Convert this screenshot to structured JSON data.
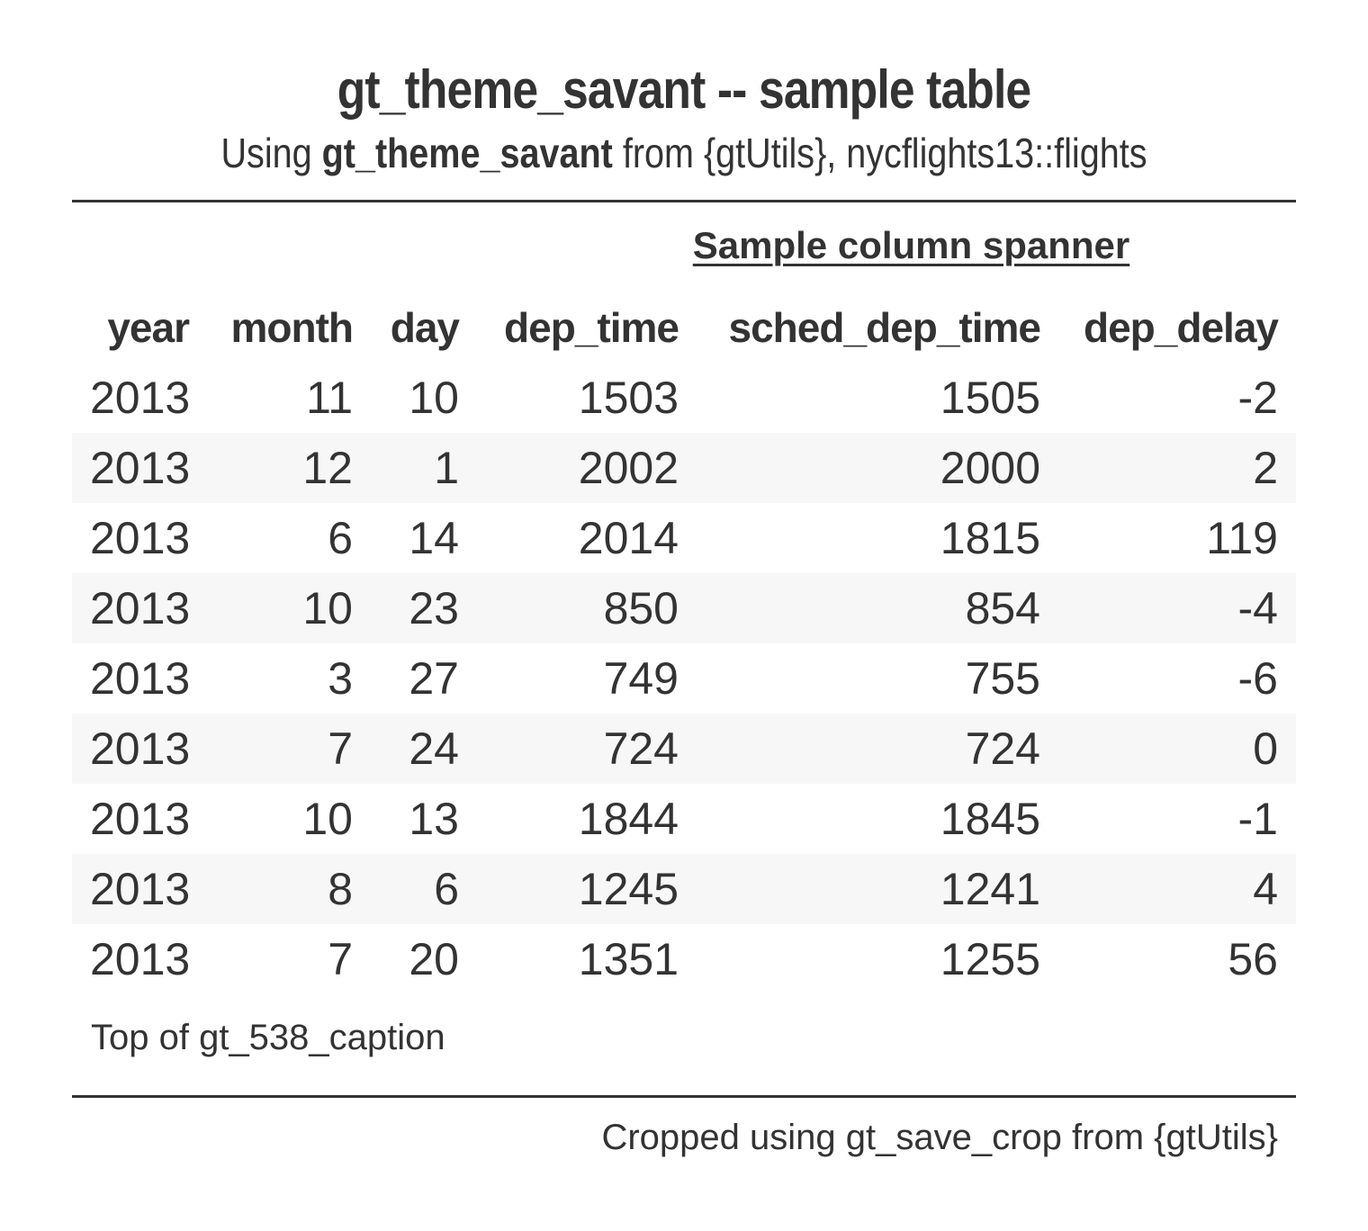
{
  "header": {
    "title": "gt_theme_savant -- sample table",
    "subtitle_prefix": "Using ",
    "subtitle_bold": "gt_theme_savant",
    "subtitle_suffix": " from {gtUtils}, nycflights13::flights"
  },
  "spanner": {
    "label": "Sample column spanner"
  },
  "table": {
    "columns": [
      "year",
      "month",
      "day",
      "dep_time",
      "sched_dep_time",
      "dep_delay"
    ],
    "rows": [
      [
        "2013",
        "11",
        "10",
        "1503",
        "1505",
        "-2"
      ],
      [
        "2013",
        "12",
        "1",
        "2002",
        "2000",
        "2"
      ],
      [
        "2013",
        "6",
        "14",
        "2014",
        "1815",
        "119"
      ],
      [
        "2013",
        "10",
        "23",
        "850",
        "854",
        "-4"
      ],
      [
        "2013",
        "3",
        "27",
        "749",
        "755",
        "-6"
      ],
      [
        "2013",
        "7",
        "24",
        "724",
        "724",
        "0"
      ],
      [
        "2013",
        "10",
        "13",
        "1844",
        "1845",
        "-1"
      ],
      [
        "2013",
        "8",
        "6",
        "1245",
        "1241",
        "4"
      ],
      [
        "2013",
        "7",
        "20",
        "1351",
        "1255",
        "56"
      ]
    ]
  },
  "caption": {
    "text": "Top of gt_538_caption"
  },
  "source_note": {
    "text": "Cropped using gt_save_crop from {gtUtils}"
  },
  "colors": {
    "text": "#333333",
    "stripe": "#f7f7f7",
    "rule": "#333333"
  }
}
